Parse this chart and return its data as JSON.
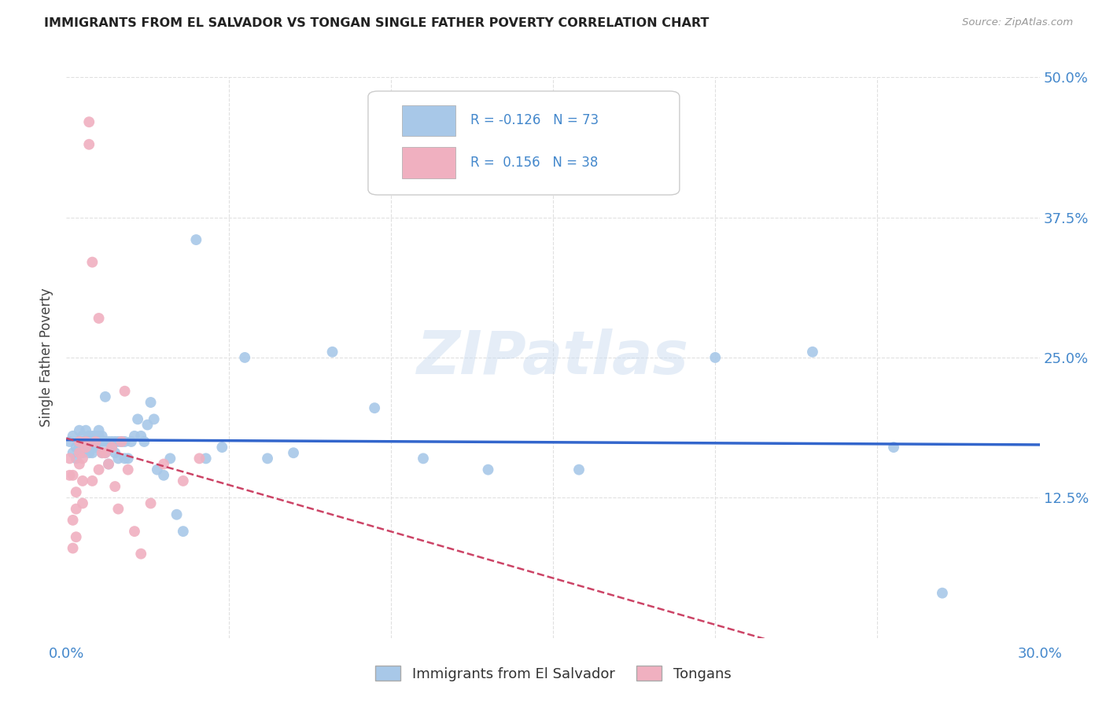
{
  "title": "IMMIGRANTS FROM EL SALVADOR VS TONGAN SINGLE FATHER POVERTY CORRELATION CHART",
  "source": "Source: ZipAtlas.com",
  "ylabel": "Single Father Poverty",
  "xlim": [
    0.0,
    0.3
  ],
  "ylim": [
    0.0,
    0.5
  ],
  "ytick_positions": [
    0.125,
    0.25,
    0.375,
    0.5
  ],
  "ytick_labels": [
    "12.5%",
    "25.0%",
    "37.5%",
    "50.0%"
  ],
  "grid_color": "#e0e0e0",
  "watermark": "ZIPatlas",
  "R_blue": -0.126,
  "N_blue": 73,
  "R_pink": 0.156,
  "N_pink": 38,
  "blue_color": "#a8c8e8",
  "pink_color": "#f0b0c0",
  "blue_line_color": "#3366cc",
  "pink_line_color": "#cc4466",
  "axis_label_color": "#4488cc",
  "title_color": "#222222",
  "blue_scatter_x": [
    0.001,
    0.002,
    0.002,
    0.003,
    0.003,
    0.004,
    0.004,
    0.004,
    0.005,
    0.005,
    0.005,
    0.006,
    0.006,
    0.006,
    0.007,
    0.007,
    0.007,
    0.008,
    0.008,
    0.008,
    0.008,
    0.009,
    0.009,
    0.009,
    0.01,
    0.01,
    0.01,
    0.011,
    0.011,
    0.011,
    0.012,
    0.012,
    0.012,
    0.013,
    0.013,
    0.014,
    0.014,
    0.015,
    0.015,
    0.016,
    0.016,
    0.017,
    0.018,
    0.018,
    0.019,
    0.02,
    0.021,
    0.022,
    0.023,
    0.024,
    0.025,
    0.026,
    0.027,
    0.028,
    0.03,
    0.032,
    0.034,
    0.036,
    0.04,
    0.043,
    0.048,
    0.055,
    0.062,
    0.07,
    0.082,
    0.095,
    0.11,
    0.13,
    0.158,
    0.2,
    0.23,
    0.255,
    0.27
  ],
  "blue_scatter_y": [
    0.175,
    0.18,
    0.165,
    0.17,
    0.16,
    0.175,
    0.185,
    0.17,
    0.175,
    0.165,
    0.18,
    0.175,
    0.17,
    0.185,
    0.175,
    0.165,
    0.18,
    0.175,
    0.17,
    0.18,
    0.165,
    0.175,
    0.18,
    0.17,
    0.18,
    0.175,
    0.185,
    0.175,
    0.18,
    0.165,
    0.215,
    0.175,
    0.165,
    0.175,
    0.155,
    0.175,
    0.17,
    0.165,
    0.175,
    0.175,
    0.16,
    0.175,
    0.175,
    0.16,
    0.16,
    0.175,
    0.18,
    0.195,
    0.18,
    0.175,
    0.19,
    0.21,
    0.195,
    0.15,
    0.145,
    0.16,
    0.11,
    0.095,
    0.355,
    0.16,
    0.17,
    0.25,
    0.16,
    0.165,
    0.255,
    0.205,
    0.16,
    0.15,
    0.15,
    0.25,
    0.255,
    0.17,
    0.04
  ],
  "pink_scatter_x": [
    0.001,
    0.001,
    0.002,
    0.002,
    0.002,
    0.003,
    0.003,
    0.003,
    0.004,
    0.004,
    0.004,
    0.005,
    0.005,
    0.005,
    0.006,
    0.006,
    0.007,
    0.007,
    0.008,
    0.008,
    0.009,
    0.01,
    0.01,
    0.011,
    0.012,
    0.013,
    0.014,
    0.015,
    0.016,
    0.017,
    0.018,
    0.019,
    0.021,
    0.023,
    0.026,
    0.03,
    0.036,
    0.041
  ],
  "pink_scatter_y": [
    0.145,
    0.16,
    0.105,
    0.145,
    0.08,
    0.09,
    0.115,
    0.13,
    0.175,
    0.155,
    0.165,
    0.12,
    0.14,
    0.16,
    0.17,
    0.175,
    0.46,
    0.44,
    0.335,
    0.14,
    0.175,
    0.15,
    0.285,
    0.165,
    0.165,
    0.155,
    0.17,
    0.135,
    0.115,
    0.175,
    0.22,
    0.15,
    0.095,
    0.075,
    0.12,
    0.155,
    0.14,
    0.16
  ]
}
